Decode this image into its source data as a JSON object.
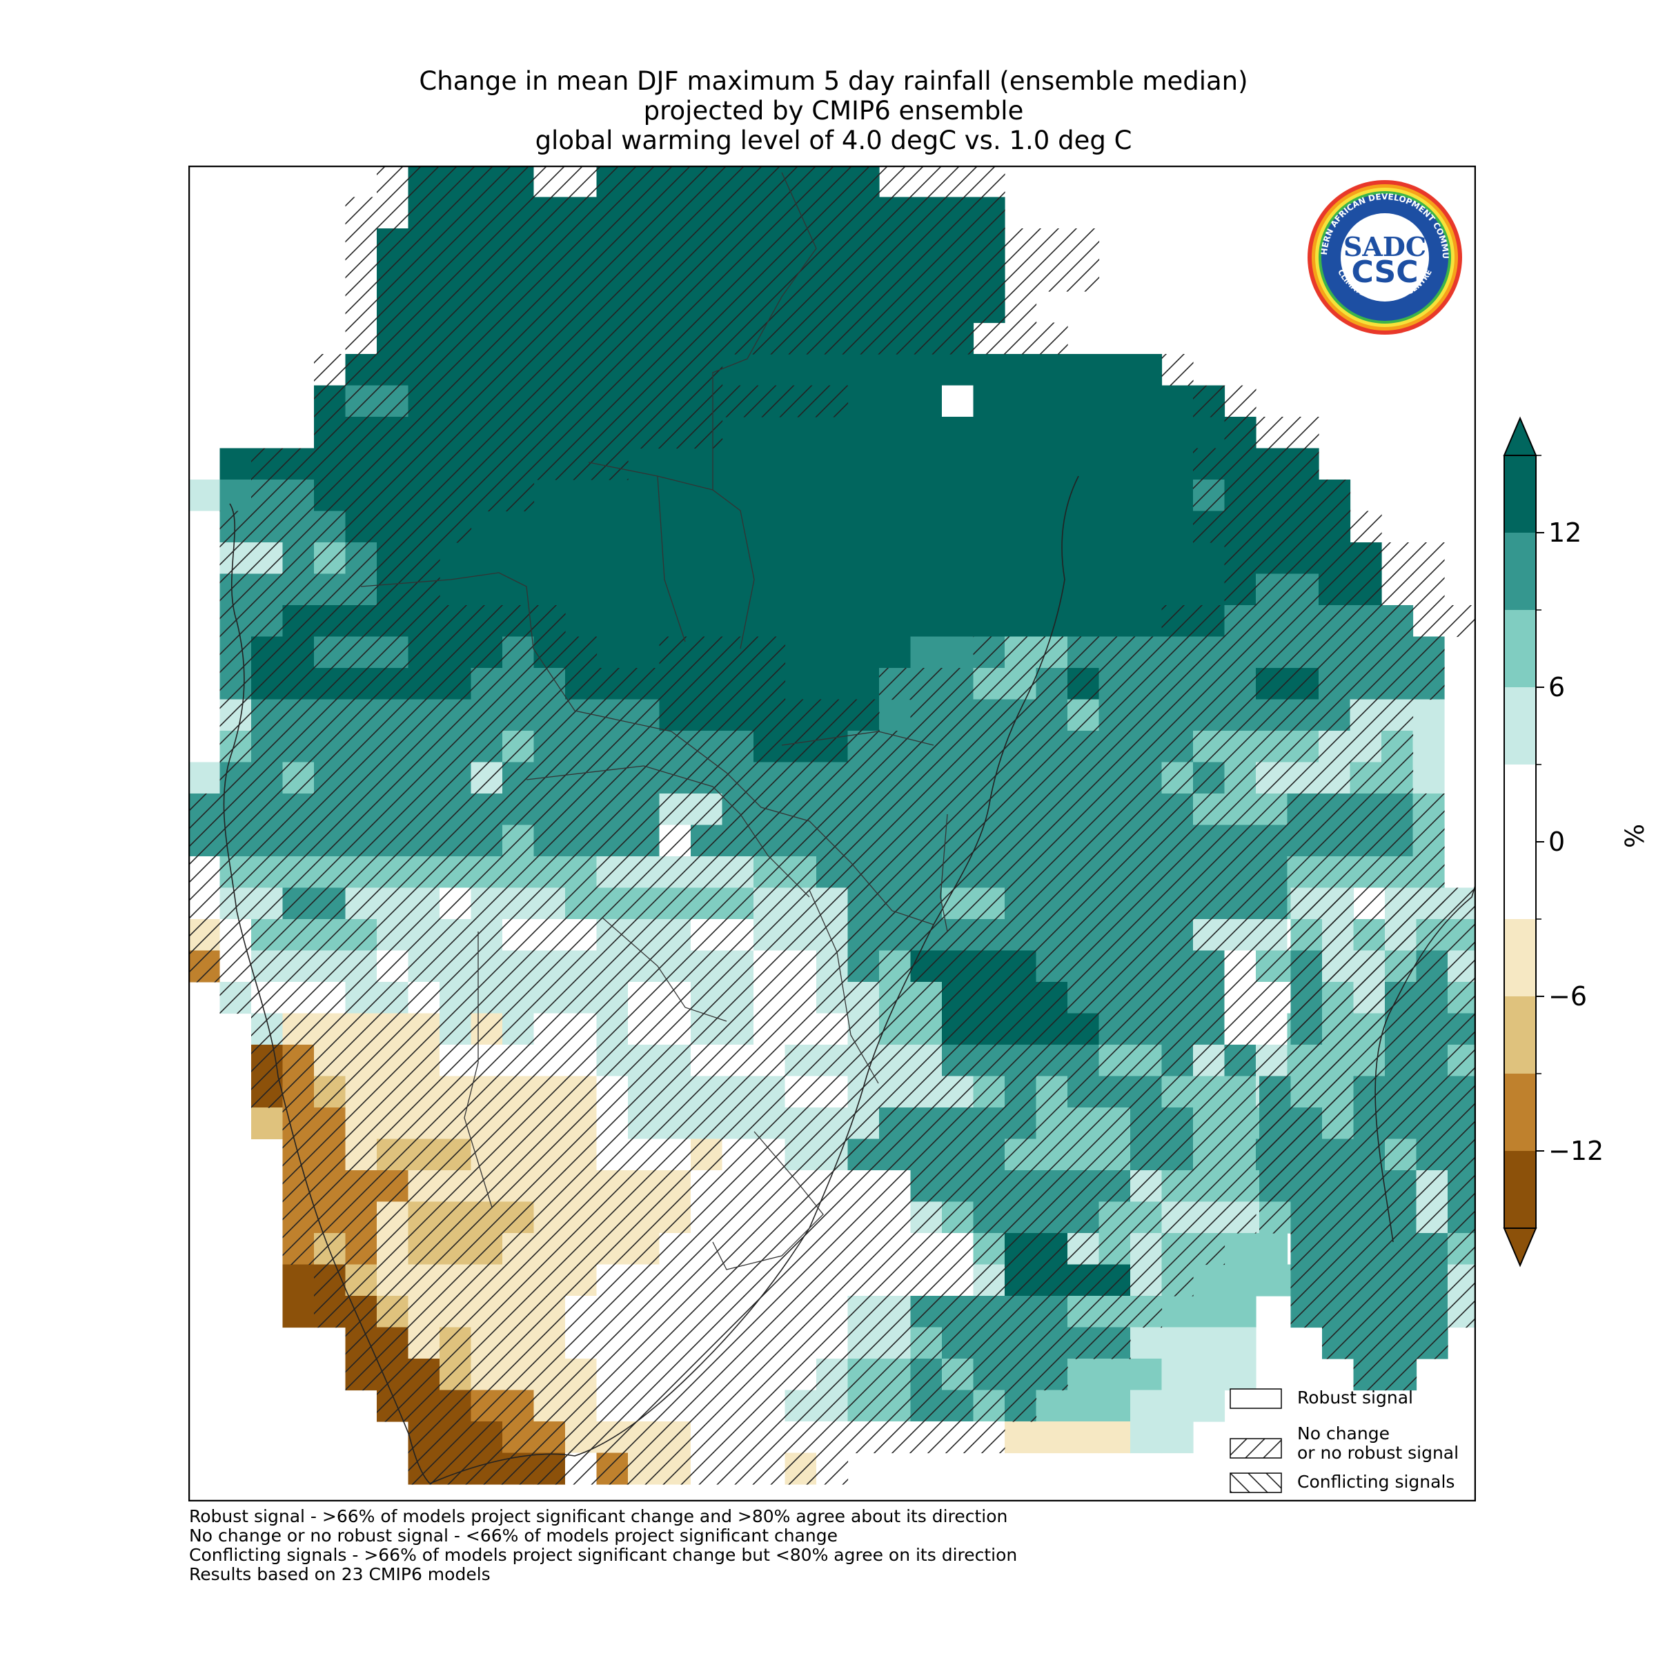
{
  "title_lines": [
    "Change in mean DJF maximum 5 day rainfall (ensemble median)",
    "projected by CMIP6 ensemble",
    "global warming level of 4.0 degC vs. 1.0 deg C"
  ],
  "colorbar": {
    "unit": "%",
    "ticks": [
      "12",
      "6",
      "0",
      "−6",
      "−12"
    ],
    "tick_values": [
      12,
      6,
      0,
      -6,
      -12
    ],
    "range": [
      -15,
      15
    ],
    "bins": [
      {
        "from": 12,
        "to": 15,
        "color": "#01665e"
      },
      {
        "from": 9,
        "to": 12,
        "color": "#35978f"
      },
      {
        "from": 6,
        "to": 9,
        "color": "#80cdc1"
      },
      {
        "from": 3,
        "to": 6,
        "color": "#c7eae5"
      },
      {
        "from": -3,
        "to": 3,
        "color": "#ffffff"
      },
      {
        "from": -6,
        "to": -3,
        "color": "#f6e8c3"
      },
      {
        "from": -9,
        "to": -6,
        "color": "#dfc27d"
      },
      {
        "from": -12,
        "to": -9,
        "color": "#bf812d"
      },
      {
        "from": -15,
        "to": -12,
        "color": "#8c510a"
      }
    ],
    "extend_colors": {
      "above": "#01665e",
      "below": "#8c510a"
    }
  },
  "legend": {
    "items": [
      {
        "label": "Robust signal",
        "hatch": "none"
      },
      {
        "label": "No change\nor no robust signal",
        "hatch": "forward"
      },
      {
        "label": "Conflicting signals",
        "hatch": "back"
      }
    ]
  },
  "footnotes": [
    "Robust signal - >66% of models project significant change and >80% agree about its direction",
    "No change or no robust signal - <66% of models project significant change",
    "Conflicting signals - >66% of models project significant change but <80% agree on its direction",
    "Results based on 23 CMIP6 models"
  ],
  "logo": {
    "ring_text_top": "SOUTHERN AFRICAN DEVELOPMENT COMMUNITY",
    "ring_text_bottom": "CLIMATE SERVICES CENTRE",
    "center_top": "SADC",
    "center_bottom": "CSC"
  },
  "map": {
    "region": "Southern Africa",
    "grid_rows": 42,
    "grid_cols": 41,
    "palette": {
      "A": "#01665e",
      "B": "#35978f",
      "C": "#80cdc1",
      "D": "#c7eae5",
      ".": "#ffffff",
      "e": "#f6e8c3",
      "f": "#dfc27d",
      "g": "#bf812d",
      "h": "#8c510a"
    },
    "rows": [
      "       AAAA..AAAAAAAAA                   ",
      "       AAAAAAAAAAAAAAAAAAA               ",
      "      AAAAAAAAAAAAAAAAAAAA               ",
      "      AAAAAAAAAAAAAAAAAAAA               ",
      "      AAAAAAAAAAAAAAAAAAAA               ",
      "      AAAAAAAAAAAAAAAAAAA                ",
      "     AAAAAAAAAAAAAAAAAAAAAAAAAA          ",
      "    ABBAAAAAAAAAAAAAAAAA.AAAAAAAA        ",
      "    AAAAAAAAAAAAAAAAAAAAAAAAAAAAAA       ",
      " AAAAAAAAAAAAAAAAAAAAAAAAAAAAAAAAAAA     ",
      "DBBBAAAAAAAAAAAAAAAAAAAAAAAAAAAABAAAA    ",
      ".BBBBAAAAAAAAAAAAAAAAAAAAAAAAAAAAAAAA    ",
      ".DDBCBAAAAAAAAAAAAAAAAAAAAAAAAAAAAAAAA   ",
      " BBBBBAAAAAAAAAAAAAAAAAAAAAAAAAAAABBAA   ",
      " BBAAAAAAAAAAAAAAAAAAAAAAAAAAAAAABBBBBB  ",
      " BAABBBAAABAAAAAAAAAAAABBBCCBBBBBBBBBBBB ",
      " BAAAAAAABBBAAAAAAAAAABBBCCBABBBBBAABBBB ",
      " DBBBBBBBBBBBBBAAAAAAABBBBBBCBBBBBBBBDDD ",
      " CBBBBBBBBCBBBBBBBAAABBBBBBBBBBBCCCCDDCD ",
      "DBBCBBBBBDBBBBBBBBBBBBBBBBBBBBBCBCDDDCCD ",
      "BBBBBBBBBBBBBBBDDBBBBBBBBBBBBBBBCCCBBBBC ",
      "BBBBBBBBBBCBBBB.BBBBBBBBBBBBBBBBBBBBBBBC ",
      ".CCCCCCCCCCCCDDDDDCCBBBBBBBBBBBBBBBCCCCC ",
      ".DDBBDDD.DDDCCCCCCDDDBBBCCBBBBBBBBBC.... ",
      "e.CCCCDDDD...DDD..DDDBBBBBBBBBBBDDD..    ",
      "g.DDDD.DDDDDDDDDDD..DBCAAAABBBBBB.CCC    ",
      " D...DD.DDDDDD..DD..DDCCAAAABBBBB....    ",
      "  DeeeeeDeD..D..DD...DCCAAAAABBBB..CB    ",
      "  hgeeee.....DDD...DDDDDBBBBBCCBDBDCC    ",
      "  hgfeeeeeeee.DDDDD..DDDDCBCBBBCCCDCCB   ",
      "  fggeeeeeeee.DDDDDDDDBBBBBCCCBBCCCBBB   ",
      "   ggefffeeee...e..DDBBBBBCCCCBBCCBCCA   ",
      "   ggggeeeeeeeee.......BBBBBBBDCCCCCCC   ",
      "   gggeffffeeeee.......DCBBBBCCDDDDDD    ",
      "   gfgefffeeeee..........CAADCDCCCC      ",
      "   hhfeeeeeee............DAAAADCCCCC     ",
      "   hhhfeeeee.........DDBBBBBCCCCCC       ",
      "     hhefeee.........DDCBBBBBBDDDD       ",
      "     hhhfeeee.......DCCBCBBBCCCDDD       ",
      "      hhhggee......DDCCBBCBCCCDDD        ",
      "       hhhggeeee..........eeeeDD         ",
      "       hhhhh.gee...e...                  "
    ],
    "hatched_rows": [
      "      ////////////////////               ",
      "     /////////////////////               ",
      "     ////////////////////////            ",
      "     ////////////////////////            ",
      "     //////////////////////              ",
      "     ///////////////////////             ",
      "    /////////////              /         ",
      "    /////////////////           //       ",
      "    /////////////                ///     ",
      "  ////////////                  ////     ",
      "  /////////                     /////    ",
      " ////////                       //////   ",
      " ///////                         ///////  ",
      " ///////                         ///////  ",
      " ///////////                   //////////",
      " ////////////  ////      ///////////////",
      " //////////////////   //////////////////",
      " ///////////////////// ////////////////",
      " //////////////////////////////////////",
      " //////////////////////////////////////",
      "////////////////////////////////////////",
      "////////////////////////////////////////",
      "////////////////////////////////////////",
      "//////////////////////////////////////// ",
      "///////////////////////////////////////  ",
      "///////////////////////////////////////  ",
      " //////////////////////////////////////  ",
      "  ////////////////////////////////////   ",
      "  ///////////////////////////////////    ",
      "  ///////////////////////////////////    ",
      "   //////////////////////////////////    ",
      "   /////////////////////////////////     ",
      "   ////////////////////////////////      ",
      "   ///////////////////////////////       ",
      "   //////////////////////////////        ",
      "    ////////////////////////////         ",
      "    ///////////////////////////          ",
      "     /////////////////////////           ",
      "     ///////////////////////             ",
      "      /////////////////////              ",
      "       ///////////////////               ",
      "       //////////////                    "
    ],
    "madagascar_rows": [
      "           D  ",
      "          DD  ",
      "         DDD  ",
      "   DD DDDDD   ",
      "   CDCDCCCD   ",
      "   BDDCBDCD   ",
      "   BCDBBCBD   ",
      "   BCCBBBBDD  ",
      "   CCCBBCCDD  ",
      "  BCCBBBBDDD  ",
      "  BBCBBBBCC   ",
      "  BBBBCBBCD   ",
      "  BBBBBDBCB   ",
      "  CBBBBDBCB   ",
      "   BBBBBCD    ",
      "   BBBBBDC    ",
      "   BBBBBD     ",
      "    BBBB      ",
      "     BB       "
    ]
  }
}
